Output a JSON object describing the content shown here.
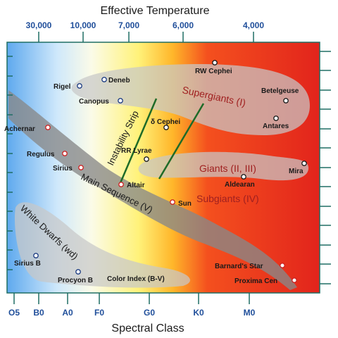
{
  "top_axis": {
    "title": "Effective Temperature",
    "ticks": [
      "30,000",
      "10,000",
      "7,000",
      "6,000",
      "4,000"
    ]
  },
  "bottom_axis": {
    "title": "Spectral Class",
    "ticks": [
      "O5",
      "B0",
      "A0",
      "F0",
      "G0",
      "K0",
      "M0"
    ]
  },
  "regions": {
    "supergiants": "Supergiants (I)",
    "giants": "Giants (II, III)",
    "subgiants": "Subgiants (IV)",
    "main_sequence": "Main Sequence (V)",
    "white_dwarfs": "White Dwarfs (wd)",
    "instability_strip": "Instability Strip",
    "color_index": "Color Index (B-V)"
  },
  "stars": [
    {
      "name": "Deneb",
      "ring": "#1a3a80"
    },
    {
      "name": "Rigel",
      "ring": "#1a3a80"
    },
    {
      "name": "Canopus",
      "ring": "#1a3a80"
    },
    {
      "name": "RW Cephei",
      "ring": "#1a1a1a"
    },
    {
      "name": "Betelgeuse",
      "ring": "#1a1a1a"
    },
    {
      "name": "Antares",
      "ring": "#1a1a1a"
    },
    {
      "name": "Achernar",
      "ring": "#cc2222"
    },
    {
      "name": "δ Cephei",
      "ring": "#1a1a1a"
    },
    {
      "name": "Regulus",
      "ring": "#cc2222"
    },
    {
      "name": "Sirius",
      "ring": "#cc2222"
    },
    {
      "name": "RR Lyrae",
      "ring": "#1a1a1a"
    },
    {
      "name": "Altair",
      "ring": "#cc2222"
    },
    {
      "name": "Mira",
      "ring": "#1a1a1a"
    },
    {
      "name": "Aldearan",
      "ring": "#1a1a1a"
    },
    {
      "name": "Sun",
      "ring": "#cc2222"
    },
    {
      "name": "Sirius B",
      "ring": "#1a3a80"
    },
    {
      "name": "Procyon B",
      "ring": "#1a3a80"
    },
    {
      "name": "Barnard's Star",
      "ring": "#cc2222"
    },
    {
      "name": "Proxima Cen",
      "ring": "#cc2222"
    }
  ],
  "colors": {
    "hot": "#5aa8ee",
    "warm": "#fff27a",
    "cool": "#e42a1e",
    "frame": "#1f6e64",
    "strip_lines": "#1e6b28"
  }
}
